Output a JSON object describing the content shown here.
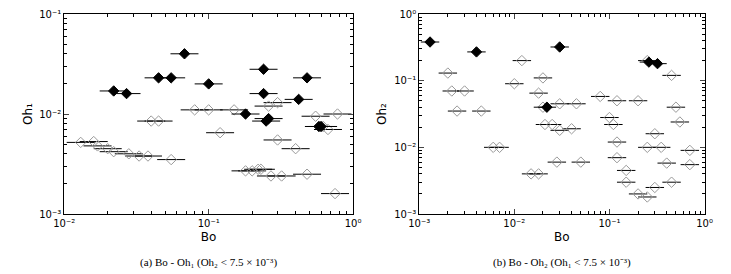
{
  "chart_data": [
    {
      "type": "scatter",
      "title": "(a) Bo - Oh₁ (Oh₂ < 7.5 × 10⁻³)",
      "x_label": "Bo",
      "y_label": "Oh₁",
      "log": true,
      "grid": false,
      "xlim": [
        0.01,
        1
      ],
      "ylim": [
        0.001,
        0.1
      ],
      "xticks": [
        {
          "value": 0.01,
          "label": "10⁻²"
        },
        {
          "value": 0.1,
          "label": "10⁻¹"
        },
        {
          "value": 1,
          "label": "10⁰"
        }
      ],
      "yticks": [
        {
          "value": 0.001,
          "label": "10⁻³"
        },
        {
          "value": 0.01,
          "label": "10⁻²"
        },
        {
          "value": 0.1,
          "label": "10⁻¹"
        }
      ],
      "series": [
        {
          "color": "#999999",
          "marker": "diamond-open",
          "x": [
            0.013,
            0.016,
            0.017,
            0.02,
            0.022,
            0.028,
            0.033,
            0.038,
            0.04,
            0.045,
            0.055,
            0.08,
            0.1,
            0.12,
            0.15,
            0.18,
            0.2,
            0.22,
            0.23,
            0.27,
            0.32,
            0.3,
            0.3,
            0.26,
            0.4,
            0.48,
            0.55,
            0.62,
            0.67,
            0.75,
            0.78
          ],
          "values": [
            0.0052,
            0.0053,
            0.0048,
            0.0045,
            0.0042,
            0.004,
            0.0038,
            0.0038,
            0.0085,
            0.0085,
            0.0035,
            0.011,
            0.011,
            0.0065,
            0.011,
            0.0027,
            0.0027,
            0.0028,
            0.0028,
            0.0024,
            0.0024,
            0.0055,
            0.013,
            0.012,
            0.0045,
            0.0025,
            0.0095,
            0.0075,
            0.007,
            0.0016,
            0.01
          ],
          "x_error_minus": [
            0.0026,
            0.0032,
            0.0034,
            0.004,
            0.0044,
            0.0056,
            0.0066,
            0.0076,
            0.008,
            0.009,
            0.011,
            0.016,
            0.02,
            0.024,
            0.03,
            0.036,
            0.04,
            0.044,
            0.046,
            0.054,
            0.064,
            0.06,
            0.06,
            0.052,
            0.08,
            0.096,
            0.11,
            0.124,
            0.134,
            0.15,
            0.156
          ],
          "x_error_plus": [
            0.00325,
            0.004,
            0.00425,
            0.005,
            0.0055,
            0.007,
            0.00825,
            0.0095,
            0.01,
            0.01125,
            0.01375,
            0.02,
            0.025,
            0.03,
            0.0375,
            0.045,
            0.05,
            0.055,
            0.0575,
            0.0675,
            0.08,
            0.075,
            0.075,
            0.065,
            0.1,
            0.12,
            0.1375,
            0.155,
            0.1675,
            0.1875,
            0.195
          ]
        },
        {
          "color": "#000000",
          "marker": "diamond",
          "x": [
            0.022,
            0.027,
            0.045,
            0.055,
            0.068,
            0.1,
            0.18,
            0.24,
            0.24,
            0.26,
            0.25,
            0.42,
            0.48,
            0.58,
            0.6
          ],
          "values": [
            0.017,
            0.016,
            0.023,
            0.023,
            0.04,
            0.02,
            0.01,
            0.028,
            0.016,
            0.009,
            0.0085,
            0.014,
            0.023,
            0.0075,
            0.0075
          ],
          "x_error_minus": [
            0.0044,
            0.0054,
            0.009,
            0.011,
            0.0136,
            0.02,
            0.036,
            0.048,
            0.048,
            0.052,
            0.05,
            0.084,
            0.096,
            0.116,
            0.12
          ],
          "x_error_plus": [
            0.0055,
            0.00675,
            0.01125,
            0.01375,
            0.017,
            0.025,
            0.045,
            0.06,
            0.06,
            0.065,
            0.0625,
            0.105,
            0.12,
            0.145,
            0.15
          ]
        }
      ]
    },
    {
      "type": "scatter",
      "title": "(b) Bo - Oh₂ (Oh₁ < 7.5 × 10⁻³)",
      "x_label": "Bo",
      "y_label": "Oh₂",
      "log": true,
      "grid": false,
      "xlim": [
        0.001,
        1
      ],
      "ylim": [
        0.001,
        1
      ],
      "xticks": [
        {
          "value": 0.001,
          "label": "10⁻³"
        },
        {
          "value": 0.01,
          "label": "10⁻²"
        },
        {
          "value": 0.1,
          "label": "10⁻¹"
        },
        {
          "value": 1,
          "label": "10⁰"
        }
      ],
      "yticks": [
        {
          "value": 0.001,
          "label": "10⁻³"
        },
        {
          "value": 0.01,
          "label": "10⁻²"
        },
        {
          "value": 0.1,
          "label": "10⁻¹"
        },
        {
          "value": 1,
          "label": "10⁰"
        }
      ],
      "series": [
        {
          "color": "#999999",
          "marker": "diamond-open",
          "x": [
            0.002,
            0.0022,
            0.003,
            0.0025,
            0.0045,
            0.006,
            0.007,
            0.01,
            0.012,
            0.018,
            0.02,
            0.02,
            0.021,
            0.025,
            0.03,
            0.04,
            0.015,
            0.018,
            0.028,
            0.05,
            0.03,
            0.045,
            0.08,
            0.1,
            0.12,
            0.11,
            0.12,
            0.12,
            0.15,
            0.15,
            0.2,
            0.25,
            0.3,
            0.3,
            0.2,
            0.25,
            0.35,
            0.4,
            0.45,
            0.5,
            0.55,
            0.7,
            0.7,
            0.45,
            0.25
          ],
          "values": [
            0.13,
            0.07,
            0.07,
            0.035,
            0.035,
            0.01,
            0.01,
            0.09,
            0.2,
            0.065,
            0.11,
            0.04,
            0.022,
            0.022,
            0.018,
            0.019,
            0.004,
            0.004,
            0.006,
            0.006,
            0.045,
            0.045,
            0.058,
            0.028,
            0.05,
            0.022,
            0.012,
            0.007,
            0.003,
            0.0045,
            0.002,
            0.0018,
            0.0025,
            0.016,
            0.05,
            0.01,
            0.01,
            0.0058,
            0.003,
            0.04,
            0.024,
            0.009,
            0.0055,
            0.12,
            0.2
          ],
          "x_error_minus": [
            0.0004,
            0.00044,
            0.0006,
            0.0005,
            0.0009,
            0.0012,
            0.0014,
            0.002,
            0.0024,
            0.0036,
            0.004,
            0.004,
            0.0042,
            0.005,
            0.006,
            0.008,
            0.003,
            0.0036,
            0.0056,
            0.01,
            0.006,
            0.009,
            0.016,
            0.02,
            0.024,
            0.022,
            0.024,
            0.024,
            0.03,
            0.03,
            0.04,
            0.05,
            0.06,
            0.06,
            0.04,
            0.05,
            0.07,
            0.08,
            0.09,
            0.1,
            0.11,
            0.14,
            0.14,
            0.09,
            0.05
          ],
          "x_error_plus": [
            0.0005,
            0.00055,
            0.00075,
            0.000625,
            0.001125,
            0.0015,
            0.00175,
            0.0025,
            0.003,
            0.0045,
            0.005,
            0.005,
            0.00525,
            0.00625,
            0.0075,
            0.01,
            0.00375,
            0.0045,
            0.007,
            0.0125,
            0.0075,
            0.01125,
            0.02,
            0.025,
            0.03,
            0.0275,
            0.03,
            0.03,
            0.0375,
            0.0375,
            0.05,
            0.0625,
            0.075,
            0.075,
            0.05,
            0.0625,
            0.0875,
            0.1,
            0.1125,
            0.125,
            0.1375,
            0.175,
            0.175,
            0.1125,
            0.0625
          ]
        },
        {
          "color": "#000000",
          "marker": "diamond",
          "x": [
            0.0013,
            0.004,
            0.03,
            0.26,
            0.32,
            0.022
          ],
          "values": [
            0.38,
            0.27,
            0.32,
            0.19,
            0.18,
            0.04
          ],
          "x_error_minus": [
            0.00026,
            0.0008,
            0.006,
            0.052,
            0.064,
            0.0044
          ],
          "x_error_plus": [
            0.000325,
            0.001,
            0.0075,
            0.065,
            0.08,
            0.0055
          ]
        }
      ]
    }
  ]
}
